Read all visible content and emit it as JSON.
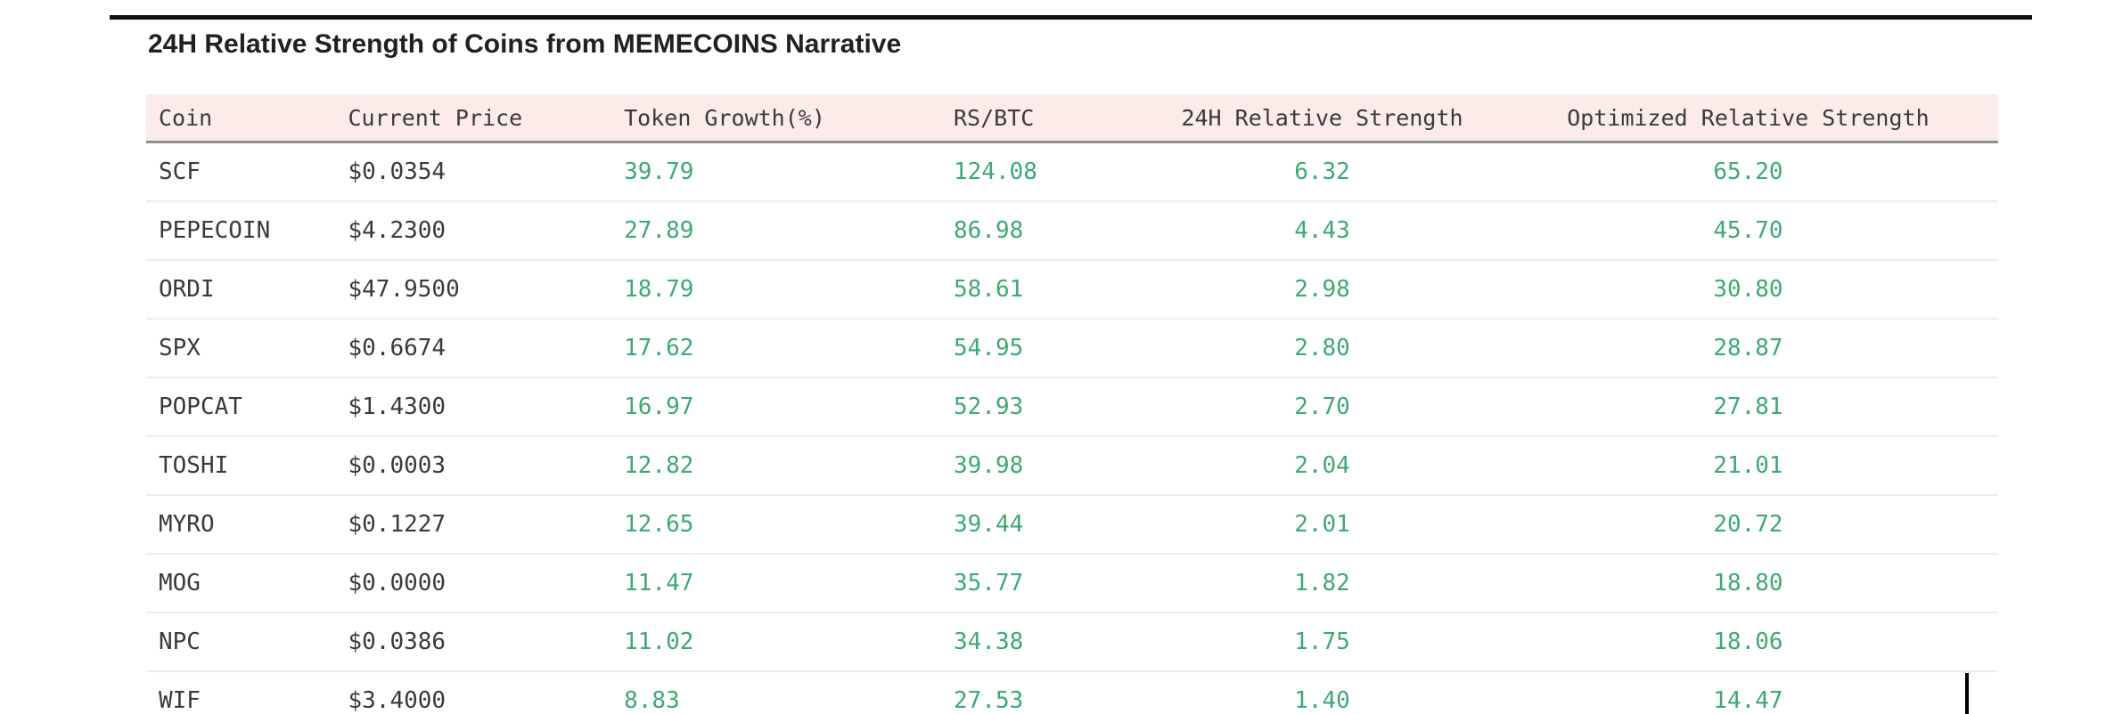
{
  "page": {
    "title": "24H Relative Strength of Coins from MEMECOINS Narrative"
  },
  "colors": {
    "header_background": "#fbecea",
    "positive_value_green": "#3fa873",
    "body_text": "#3a3a3a",
    "row_separator": "#f7eae7",
    "header_underline": "#8f8f8f",
    "top_rule": "#0f0f0f"
  },
  "table": {
    "columns": [
      {
        "label": "Coin"
      },
      {
        "label": "Current Price"
      },
      {
        "label": "Token Growth(%)"
      },
      {
        "label": "RS/BTC"
      },
      {
        "label": "24H Relative Strength"
      },
      {
        "label": "Optimized Relative Strength"
      }
    ],
    "rows": [
      {
        "coin": "SCF",
        "current_price": "$0.0354",
        "token_growth_pct": "39.79",
        "rs_btc": "124.08",
        "rs_24h": "6.32",
        "optimized_rs": "65.20"
      },
      {
        "coin": "PEPECOIN",
        "current_price": "$4.2300",
        "token_growth_pct": "27.89",
        "rs_btc": "86.98",
        "rs_24h": "4.43",
        "optimized_rs": "45.70"
      },
      {
        "coin": "ORDI",
        "current_price": "$47.9500",
        "token_growth_pct": "18.79",
        "rs_btc": "58.61",
        "rs_24h": "2.98",
        "optimized_rs": "30.80"
      },
      {
        "coin": "SPX",
        "current_price": "$0.6674",
        "token_growth_pct": "17.62",
        "rs_btc": "54.95",
        "rs_24h": "2.80",
        "optimized_rs": "28.87"
      },
      {
        "coin": "POPCAT",
        "current_price": "$1.4300",
        "token_growth_pct": "16.97",
        "rs_btc": "52.93",
        "rs_24h": "2.70",
        "optimized_rs": "27.81"
      },
      {
        "coin": "TOSHI",
        "current_price": "$0.0003",
        "token_growth_pct": "12.82",
        "rs_btc": "39.98",
        "rs_24h": "2.04",
        "optimized_rs": "21.01"
      },
      {
        "coin": "MYRO",
        "current_price": "$0.1227",
        "token_growth_pct": "12.65",
        "rs_btc": "39.44",
        "rs_24h": "2.01",
        "optimized_rs": "20.72"
      },
      {
        "coin": "MOG",
        "current_price": "$0.0000",
        "token_growth_pct": "11.47",
        "rs_btc": "35.77",
        "rs_24h": "1.82",
        "optimized_rs": "18.80"
      },
      {
        "coin": "NPC",
        "current_price": "$0.0386",
        "token_growth_pct": "11.02",
        "rs_btc": "34.38",
        "rs_24h": "1.75",
        "optimized_rs": "18.06"
      },
      {
        "coin": "WIF",
        "current_price": "$3.4000",
        "token_growth_pct": "8.83",
        "rs_btc": "27.53",
        "rs_24h": "1.40",
        "optimized_rs": "14.47"
      }
    ]
  }
}
